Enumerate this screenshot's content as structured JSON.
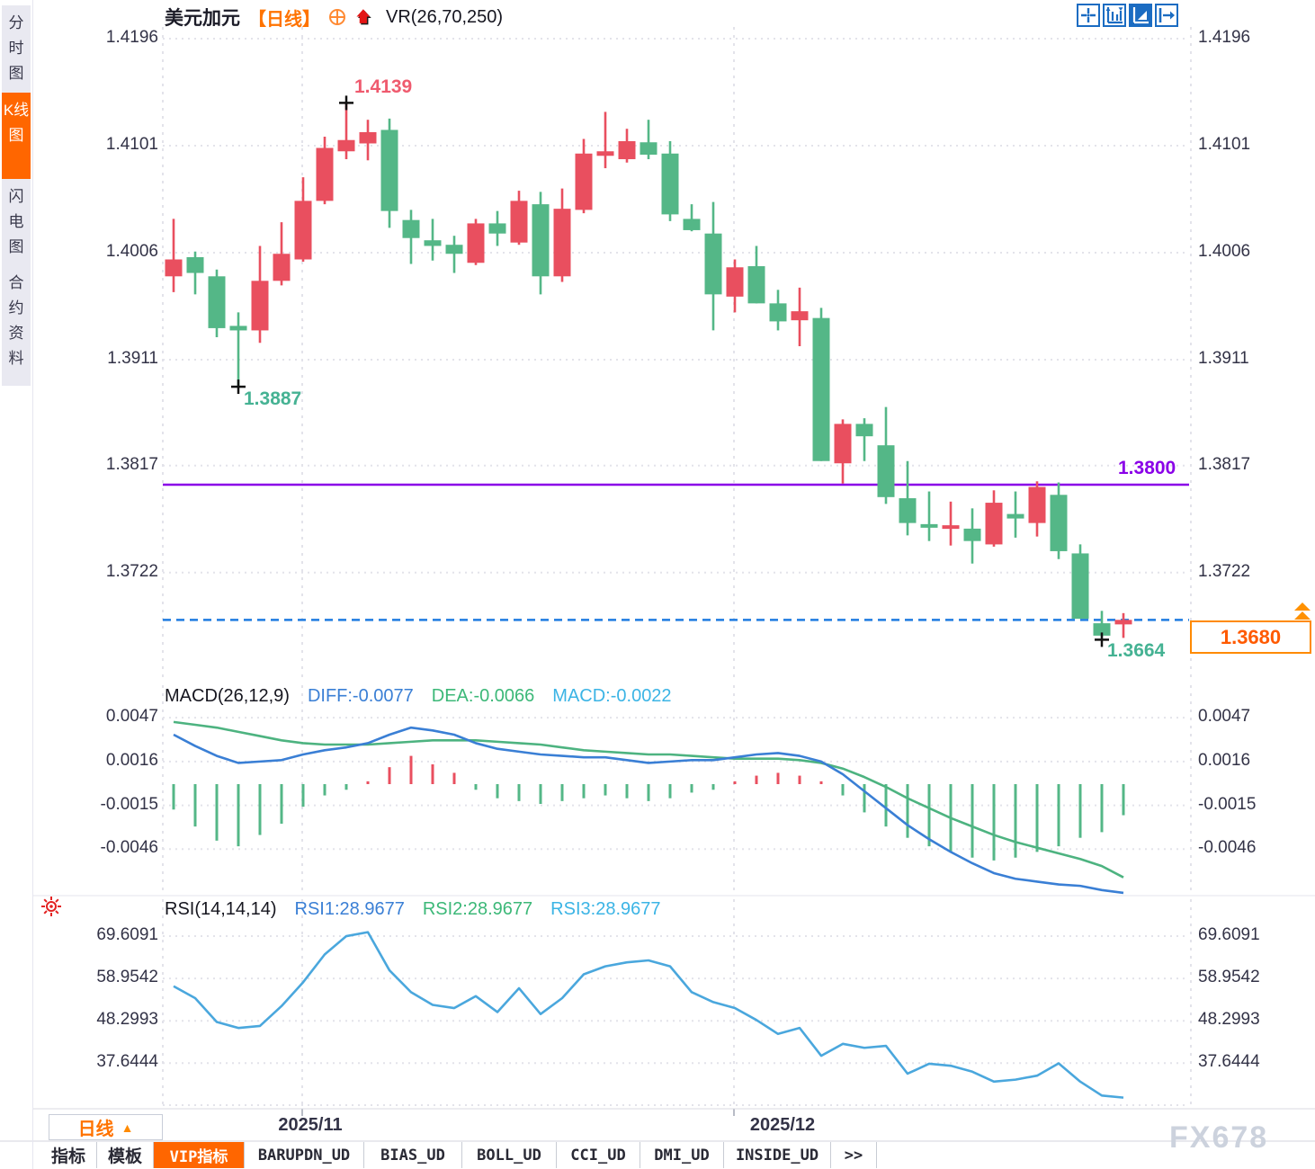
{
  "header": {
    "title": "美元加元",
    "period_tag": "【日线】",
    "indicator": "VR(26,70,250)"
  },
  "sidebar": {
    "items": [
      {
        "label": "分时图",
        "active": false
      },
      {
        "label": "K线图",
        "active": true
      },
      {
        "label": "闪电图",
        "active": false
      },
      {
        "label": "合约资料",
        "active": false
      }
    ]
  },
  "toolbar": {
    "icons": [
      "pan-crosshair-icon",
      "axis-scale-icon",
      "auto-fit-icon",
      "shift-right-icon"
    ]
  },
  "labels": {
    "high": "1.4139",
    "low": "1.3887",
    "hline": "1.3800",
    "last_low": "1.3664",
    "price_tag": "1.3680"
  },
  "macd_header": {
    "title": "MACD(26,12,9)",
    "diff_label": "DIFF:-0.0077",
    "dea_label": "DEA:-0.0066",
    "macd_label": "MACD:-0.0022"
  },
  "rsi_header": {
    "title": "RSI(14,14,14)",
    "rsi1_label": "RSI1:28.9677",
    "rsi2_label": "RSI2:28.9677",
    "rsi3_label": "RSI3:28.9677"
  },
  "footer": {
    "period_label": "日线",
    "tabs": [
      {
        "label": "指标",
        "active": false
      },
      {
        "label": "模板",
        "active": false
      },
      {
        "label": "VIP指标",
        "active": true
      },
      {
        "label": "BARUPDN_UD",
        "active": false
      },
      {
        "label": "BIAS_UD",
        "active": false
      },
      {
        "label": "BOLL_UD",
        "active": false
      },
      {
        "label": "CCI_UD",
        "active": false
      },
      {
        "label": "DMI_UD",
        "active": false
      },
      {
        "label": "INSIDE_UD",
        "active": false
      },
      {
        "label": ">>",
        "active": false
      }
    ],
    "watermark": "FX678"
  },
  "colors": {
    "up": "#e94f5f",
    "down": "#54b787",
    "diff_line": "#3a7fd5",
    "dea_line": "#4db380",
    "rsi_line": "#4aa7dd",
    "hline": "#8a00e8",
    "last_price": "#1f7be0",
    "accent": "#ff6600",
    "grid": "#e3e3ea"
  },
  "chart_data": [
    {
      "type": "candlestick",
      "symbol": "美元加元",
      "period": "日线",
      "y_ticks": [
        "1.4196",
        "1.4101",
        "1.4006",
        "1.3911",
        "1.3817",
        "1.3722"
      ],
      "x_labels": [
        "2025/11",
        "2025/12"
      ],
      "hline": {
        "value": 1.38
      },
      "last_price_line": {
        "value": 1.368
      },
      "annotations": {
        "high": 1.4139,
        "low": 1.3887,
        "last_low": 1.3664,
        "price_tag": 1.368
      },
      "candles": [
        [
          1.3985,
          1.4036,
          1.3971,
          1.4
        ],
        [
          1.4002,
          1.4007,
          1.3969,
          1.3988
        ],
        [
          1.3985,
          1.3991,
          1.3931,
          1.3939
        ],
        [
          1.3941,
          1.3953,
          1.3887,
          1.3937
        ],
        [
          1.3937,
          1.4012,
          1.3926,
          1.3981
        ],
        [
          1.3981,
          1.4033,
          1.3977,
          1.4005
        ],
        [
          1.4,
          1.4073,
          1.3998,
          1.4052
        ],
        [
          1.4052,
          1.4109,
          1.4049,
          1.4099
        ],
        [
          1.4096,
          1.4139,
          1.4089,
          1.4106
        ],
        [
          1.4103,
          1.4124,
          1.4088,
          1.4113
        ],
        [
          1.4115,
          1.4125,
          1.4028,
          1.4043
        ],
        [
          1.4035,
          1.4044,
          1.3996,
          1.4019
        ],
        [
          1.4017,
          1.4036,
          1.3999,
          1.4012
        ],
        [
          1.4013,
          1.4021,
          1.3988,
          1.4005
        ],
        [
          1.3997,
          1.4036,
          1.3995,
          1.4032
        ],
        [
          1.4032,
          1.4043,
          1.4012,
          1.4023
        ],
        [
          1.4015,
          1.4061,
          1.4013,
          1.4052
        ],
        [
          1.4049,
          1.406,
          1.3969,
          1.3985
        ],
        [
          1.3985,
          1.4063,
          1.398,
          1.4045
        ],
        [
          1.4044,
          1.4107,
          1.4041,
          1.4094
        ],
        [
          1.4092,
          1.4131,
          1.4081,
          1.4096
        ],
        [
          1.4089,
          1.4116,
          1.4086,
          1.4105
        ],
        [
          1.4104,
          1.4124,
          1.4089,
          1.4093
        ],
        [
          1.4094,
          1.4105,
          1.4034,
          1.404
        ],
        [
          1.4036,
          1.4049,
          1.4025,
          1.4026
        ],
        [
          1.4023,
          1.4051,
          1.3937,
          1.3969
        ],
        [
          1.3967,
          1.4,
          1.3953,
          1.3993
        ],
        [
          1.3994,
          1.4012,
          1.3961,
          1.3961
        ],
        [
          1.3961,
          1.3973,
          1.3937,
          1.3945
        ],
        [
          1.3946,
          1.3975,
          1.3923,
          1.3954
        ],
        [
          1.3948,
          1.3957,
          1.3821,
          1.3821
        ],
        [
          1.3819,
          1.3858,
          1.3801,
          1.3854
        ],
        [
          1.3854,
          1.3859,
          1.3821,
          1.3843
        ],
        [
          1.3835,
          1.3869,
          1.3783,
          1.3789
        ],
        [
          1.3788,
          1.3821,
          1.3755,
          1.3766
        ],
        [
          1.3765,
          1.3794,
          1.375,
          1.3763
        ],
        [
          1.3761,
          1.3785,
          1.3746,
          1.3764
        ],
        [
          1.3761,
          1.3779,
          1.373,
          1.375
        ],
        [
          1.3747,
          1.3795,
          1.3745,
          1.3784
        ],
        [
          1.3774,
          1.3794,
          1.3753,
          1.377
        ],
        [
          1.3766,
          1.3803,
          1.3754,
          1.3798
        ],
        [
          1.3791,
          1.3802,
          1.3734,
          1.3741
        ],
        [
          1.3739,
          1.3747,
          1.3681,
          1.3681
        ],
        [
          1.3677,
          1.3688,
          1.3664,
          1.3666
        ],
        [
          1.3676,
          1.3686,
          1.3664,
          1.368
        ]
      ]
    },
    {
      "type": "macd",
      "title": "MACD(26,12,9)",
      "y_ticks": [
        "0.0047",
        "0.0016",
        "-0.0015",
        "-0.0046"
      ],
      "diff": -0.0077,
      "dea": -0.0066,
      "macd": -0.0022,
      "series": {
        "diff": [
          0.0035,
          0.0027,
          0.002,
          0.0015,
          0.0016,
          0.0017,
          0.0021,
          0.0024,
          0.0026,
          0.0029,
          0.0035,
          0.004,
          0.0038,
          0.0035,
          0.0029,
          0.0025,
          0.0023,
          0.0021,
          0.002,
          0.0019,
          0.0019,
          0.0017,
          0.0015,
          0.0016,
          0.0017,
          0.0017,
          0.0019,
          0.0021,
          0.0022,
          0.002,
          0.0016,
          0.0007,
          -0.0005,
          -0.0017,
          -0.0029,
          -0.0039,
          -0.0048,
          -0.0056,
          -0.0063,
          -0.0067,
          -0.0069,
          -0.0071,
          -0.0072,
          -0.0075,
          -0.0077
        ],
        "dea": [
          0.0044,
          0.0042,
          0.004,
          0.0037,
          0.0034,
          0.0031,
          0.0029,
          0.0028,
          0.0028,
          0.0028,
          0.0029,
          0.003,
          0.0031,
          0.0031,
          0.0031,
          0.003,
          0.0029,
          0.0028,
          0.0026,
          0.0024,
          0.0023,
          0.0022,
          0.0021,
          0.0021,
          0.002,
          0.0019,
          0.0018,
          0.0018,
          0.0018,
          0.0017,
          0.0015,
          0.0011,
          0.0005,
          -0.0002,
          -0.001,
          -0.0017,
          -0.0024,
          -0.003,
          -0.0036,
          -0.0041,
          -0.0045,
          -0.0049,
          -0.0053,
          -0.0058,
          -0.0066
        ],
        "hist": [
          -0.0018,
          -0.003,
          -0.004,
          -0.0044,
          -0.0036,
          -0.0028,
          -0.0016,
          -0.0008,
          -0.0004,
          0.0002,
          0.0012,
          0.002,
          0.0014,
          0.0008,
          -0.0004,
          -0.001,
          -0.0012,
          -0.0014,
          -0.0012,
          -0.001,
          -0.0008,
          -0.001,
          -0.0012,
          -0.001,
          -0.0006,
          -0.0004,
          0.0002,
          0.0006,
          0.0008,
          0.0006,
          0.0002,
          -0.0008,
          -0.002,
          -0.003,
          -0.0038,
          -0.0044,
          -0.0048,
          -0.0052,
          -0.0054,
          -0.0052,
          -0.0048,
          -0.0044,
          -0.0038,
          -0.0034,
          -0.0022
        ]
      }
    },
    {
      "type": "line",
      "title": "RSI(14,14,14)",
      "y_ticks": [
        "69.6091",
        "58.9542",
        "48.2993",
        "37.6444"
      ],
      "values": [
        57,
        54,
        48,
        46.5,
        47,
        52,
        58,
        65,
        69.6,
        70.6,
        61,
        55.5,
        52.3,
        51.5,
        54.5,
        50.5,
        56.5,
        50,
        54,
        60,
        62,
        63,
        63.5,
        62,
        55.5,
        53,
        51.5,
        48.5,
        45,
        46.5,
        39.5,
        42.5,
        41.5,
        42,
        35,
        37.5,
        37,
        35.5,
        33,
        33.5,
        34.5,
        37.6,
        33,
        29.5,
        28.97
      ]
    }
  ]
}
